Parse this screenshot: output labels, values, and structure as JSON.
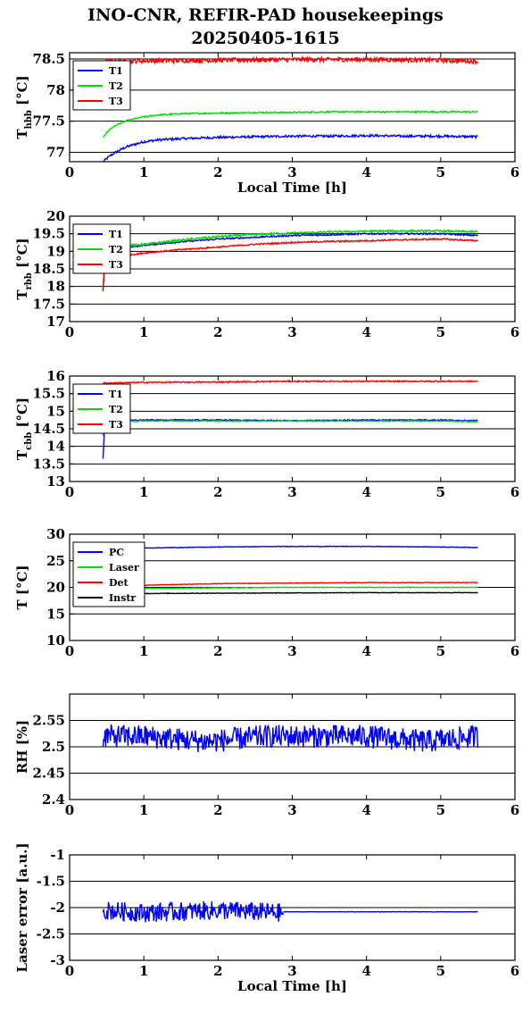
{
  "title": {
    "line1": "INO-CNR, REFIR-PAD housekeepings",
    "line2": "20250405-1615"
  },
  "chart_data": [
    {
      "type": "line",
      "ylabel_main": "T",
      "ylabel_sub": "hbb",
      "ylabel_tail": " [°C]",
      "xlabel": "Local Time [h]",
      "xlim": [
        0,
        6
      ],
      "ylim": [
        76.85,
        78.6
      ],
      "yticks": [
        77,
        77.5,
        78,
        78.5
      ],
      "ytick_labels": [
        "77",
        "77.5",
        "78",
        "78.5"
      ],
      "xticks": [
        0,
        1,
        2,
        3,
        4,
        5,
        6
      ],
      "grid": true,
      "legend": "top-left",
      "series": [
        {
          "name": "T1",
          "color": "#0000ff",
          "noise": 0.018,
          "x": [
            0.45,
            0.55,
            0.65,
            0.75,
            0.85,
            1.0,
            1.2,
            1.5,
            2.0,
            2.5,
            3.0,
            3.5,
            4.0,
            4.5,
            5.0,
            5.5
          ],
          "y": [
            76.85,
            76.95,
            77.02,
            77.08,
            77.12,
            77.17,
            77.2,
            77.22,
            77.24,
            77.25,
            77.26,
            77.26,
            77.27,
            77.26,
            77.26,
            77.25
          ]
        },
        {
          "name": "T2",
          "color": "#00dd00",
          "noise": 0.012,
          "x": [
            0.45,
            0.55,
            0.65,
            0.75,
            0.85,
            1.0,
            1.2,
            1.5,
            2.0,
            2.5,
            3.0,
            3.5,
            4.0,
            4.5,
            5.0,
            5.5
          ],
          "y": [
            77.25,
            77.38,
            77.45,
            77.5,
            77.53,
            77.57,
            77.6,
            77.62,
            77.63,
            77.64,
            77.64,
            77.65,
            77.65,
            77.65,
            77.65,
            77.65
          ]
        },
        {
          "name": "T3",
          "color": "#ff0000",
          "noise": 0.035,
          "x": [
            0.45,
            1.0,
            2.0,
            3.0,
            4.0,
            5.0,
            5.5
          ],
          "y": [
            78.46,
            78.47,
            78.48,
            78.49,
            78.49,
            78.48,
            78.46
          ]
        }
      ]
    },
    {
      "type": "line",
      "ylabel_main": "T",
      "ylabel_sub": "rbb",
      "ylabel_tail": " [°C]",
      "xlabel": "",
      "xlim": [
        0,
        6
      ],
      "ylim": [
        17,
        20
      ],
      "yticks": [
        17,
        17.5,
        18,
        18.5,
        19,
        19.5,
        20
      ],
      "ytick_labels": [
        "17",
        "17.5",
        "18",
        "18.5",
        "19",
        "19.5",
        "20"
      ],
      "xticks": [
        0,
        1,
        2,
        3,
        4,
        5,
        6
      ],
      "grid": true,
      "legend": "top-left",
      "series": [
        {
          "name": "T1",
          "color": "#0000ff",
          "noise": 0.02,
          "x": [
            0.45,
            0.47,
            0.5,
            0.7,
            1.0,
            1.5,
            2.0,
            2.5,
            3.0,
            3.5,
            4.0,
            4.5,
            5.0,
            5.5
          ],
          "y": [
            17.85,
            18.7,
            19.05,
            19.1,
            19.17,
            19.27,
            19.35,
            19.4,
            19.45,
            19.47,
            19.5,
            19.5,
            19.5,
            19.45
          ]
        },
        {
          "name": "T2",
          "color": "#00dd00",
          "noise": 0.025,
          "x": [
            0.45,
            0.47,
            0.5,
            0.7,
            1.0,
            1.5,
            2.0,
            2.5,
            3.0,
            3.5,
            4.0,
            4.5,
            5.0,
            5.5
          ],
          "y": [
            17.85,
            18.8,
            19.1,
            19.15,
            19.2,
            19.32,
            19.42,
            19.48,
            19.52,
            19.55,
            19.57,
            19.58,
            19.58,
            19.55
          ]
        },
        {
          "name": "T3",
          "color": "#ff0000",
          "noise": 0.02,
          "x": [
            0.45,
            0.47,
            0.5,
            0.7,
            1.0,
            1.5,
            2.0,
            2.5,
            3.0,
            3.5,
            4.0,
            4.5,
            5.0,
            5.5
          ],
          "y": [
            17.9,
            18.5,
            18.8,
            18.87,
            18.95,
            19.05,
            19.12,
            19.2,
            19.25,
            19.28,
            19.3,
            19.33,
            19.35,
            19.3
          ]
        }
      ]
    },
    {
      "type": "line",
      "ylabel_main": "T",
      "ylabel_sub": "cbb",
      "ylabel_tail": " [°C]",
      "xlabel": "",
      "xlim": [
        0,
        6
      ],
      "ylim": [
        13,
        16
      ],
      "yticks": [
        13,
        13.5,
        14,
        14.5,
        15,
        15.5,
        16
      ],
      "ytick_labels": [
        "13",
        "13.5",
        "14",
        "14.5",
        "15",
        "15.5",
        "16"
      ],
      "xticks": [
        0,
        1,
        2,
        3,
        4,
        5,
        6
      ],
      "grid": true,
      "legend": "top-left",
      "series": [
        {
          "name": "T1",
          "color": "#0000ff",
          "noise": 0.015,
          "x": [
            0.45,
            0.47,
            0.5,
            1.0,
            2.0,
            3.0,
            4.0,
            5.0,
            5.5
          ],
          "y": [
            13.65,
            14.5,
            14.72,
            14.75,
            14.75,
            14.73,
            14.75,
            14.75,
            14.73
          ]
        },
        {
          "name": "T2",
          "color": "#00dd00",
          "noise": 0.015,
          "x": [
            0.45,
            0.47,
            0.5,
            1.0,
            2.0,
            3.0,
            4.0,
            5.0,
            5.5
          ],
          "y": [
            14.3,
            14.6,
            14.7,
            14.72,
            14.72,
            14.72,
            14.72,
            14.72,
            14.7
          ]
        },
        {
          "name": "T3",
          "color": "#ff0000",
          "noise": 0.018,
          "x": [
            0.45,
            1.0,
            2.0,
            3.0,
            4.0,
            5.0,
            5.5
          ],
          "y": [
            15.8,
            15.82,
            15.83,
            15.85,
            15.85,
            15.85,
            15.85
          ]
        }
      ]
    },
    {
      "type": "line",
      "ylabel_main": "T [°C]",
      "ylabel_sub": "",
      "ylabel_tail": "",
      "xlabel": "",
      "xlim": [
        0,
        6
      ],
      "ylim": [
        10,
        30
      ],
      "yticks": [
        10,
        15,
        20,
        25,
        30
      ],
      "ytick_labels": [
        "10",
        "15",
        "20",
        "25",
        "30"
      ],
      "xticks": [
        0,
        1,
        2,
        3,
        4,
        5,
        6
      ],
      "grid": true,
      "legend": "top-left",
      "series": [
        {
          "name": "PC",
          "color": "#0000ff",
          "noise": 0.05,
          "x": [
            0.45,
            1.0,
            2.0,
            3.0,
            4.0,
            5.0,
            5.5
          ],
          "y": [
            27.3,
            27.4,
            27.6,
            27.7,
            27.7,
            27.6,
            27.5
          ]
        },
        {
          "name": "Laser",
          "color": "#00dd00",
          "noise": 0.05,
          "x": [
            0.45,
            1.0,
            2.0,
            3.0,
            4.0,
            5.0,
            5.5
          ],
          "y": [
            19.6,
            19.8,
            19.9,
            20.0,
            20.0,
            20.0,
            20.0
          ]
        },
        {
          "name": "Det",
          "color": "#ff0000",
          "noise": 0.05,
          "x": [
            0.45,
            1.0,
            2.0,
            3.0,
            4.0,
            5.0,
            5.5
          ],
          "y": [
            20.2,
            20.4,
            20.7,
            20.8,
            20.9,
            20.9,
            20.9
          ]
        },
        {
          "name": "Instr",
          "color": "#000000",
          "noise": 0.05,
          "x": [
            0.45,
            1.0,
            2.0,
            3.0,
            4.0,
            5.0,
            5.5
          ],
          "y": [
            18.8,
            18.85,
            18.9,
            18.95,
            19.0,
            19.0,
            19.0
          ]
        }
      ]
    },
    {
      "type": "line",
      "ylabel_main": "RH [%]",
      "ylabel_sub": "",
      "ylabel_tail": "",
      "xlabel": "",
      "xlim": [
        0,
        6
      ],
      "ylim": [
        2.4,
        2.6
      ],
      "yticks": [
        2.4,
        2.45,
        2.5,
        2.55
      ],
      "ytick_labels": [
        "2.4",
        "2.45",
        "2.5",
        "2.55"
      ],
      "xticks": [
        0,
        1,
        2,
        3,
        4,
        5,
        6
      ],
      "grid": true,
      "legend": "none",
      "series": [
        {
          "color": "#0000ff",
          "noise": 0.022,
          "x": [
            0.45,
            1.0,
            1.85,
            2.65,
            3.0,
            4.0,
            4.8,
            5.5
          ],
          "y": [
            2.52,
            2.52,
            2.51,
            2.52,
            2.52,
            2.52,
            2.51,
            2.52
          ]
        }
      ]
    },
    {
      "type": "line",
      "ylabel_main": "Laser error [a.u.]",
      "ylabel_sub": "",
      "ylabel_tail": "",
      "xlabel": "Local Time [h]",
      "xlim": [
        0,
        6
      ],
      "ylim": [
        -3,
        -1
      ],
      "yticks": [
        -3,
        -2.5,
        -2,
        -1.5,
        -1
      ],
      "ytick_labels": [
        "-3",
        "-2.5",
        "-2",
        "-1.5",
        "-1"
      ],
      "xticks": [
        0,
        1,
        2,
        3,
        4,
        5,
        6
      ],
      "grid": true,
      "legend": "none",
      "series": [
        {
          "color": "#0000ff",
          "noise": 0.18,
          "x": [
            0.45,
            1.0,
            2.0,
            2.88
          ],
          "y": [
            -2.05,
            -2.1,
            -2.05,
            -2.1
          ]
        },
        {
          "color": "#0000ff",
          "noise": 0.003,
          "x": [
            2.88,
            3.5,
            4.5,
            5.5
          ],
          "y": [
            -2.08,
            -2.08,
            -2.08,
            -2.08
          ]
        }
      ]
    }
  ]
}
